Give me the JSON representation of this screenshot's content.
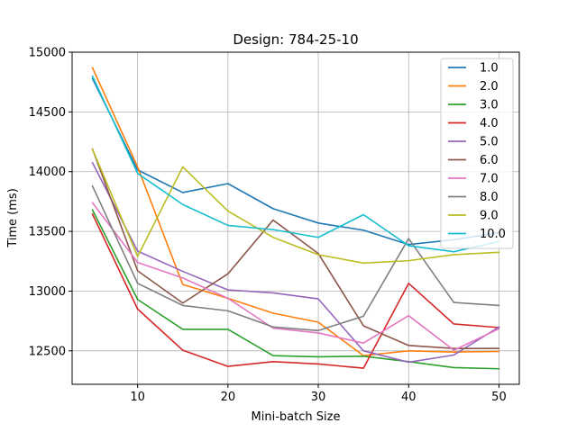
{
  "chart_data": {
    "type": "line",
    "title": "Design: 784-25-10",
    "xlabel": "Mini-batch Size",
    "ylabel": "Time (ms)",
    "x": [
      5,
      10,
      15,
      20,
      25,
      30,
      35,
      40,
      45,
      50
    ],
    "xlim": [
      2.75,
      52.25
    ],
    "ylim": [
      12220,
      15000
    ],
    "xticks": [
      10,
      20,
      30,
      40,
      50
    ],
    "yticks": [
      12500,
      13000,
      13500,
      14000,
      14500,
      15000
    ],
    "grid": true,
    "legend_position": "upper right",
    "series": [
      {
        "name": "1.0",
        "color": "#1f77b4",
        "values": [
          14780,
          14015,
          13825,
          13900,
          13690,
          13570,
          13510,
          13390,
          13430,
          13490
        ]
      },
      {
        "name": "2.0",
        "color": "#ff7f0e",
        "values": [
          14870,
          14040,
          13055,
          12940,
          12815,
          12740,
          12460,
          12500,
          12490,
          12495
        ]
      },
      {
        "name": "3.0",
        "color": "#2ca02c",
        "values": [
          13680,
          12930,
          12680,
          12680,
          12460,
          12450,
          12455,
          12410,
          12360,
          12350
        ]
      },
      {
        "name": "4.0",
        "color": "#d62728",
        "values": [
          13645,
          12850,
          12505,
          12370,
          12410,
          12390,
          12355,
          13065,
          12725,
          12695
        ]
      },
      {
        "name": "5.0",
        "color": "#9467bd",
        "values": [
          14075,
          13335,
          13165,
          13010,
          12985,
          12935,
          12500,
          12405,
          12465,
          12700
        ]
      },
      {
        "name": "6.0",
        "color": "#8c564b",
        "values": [
          14190,
          13170,
          12900,
          13145,
          13595,
          13315,
          12710,
          12545,
          12520,
          12520
        ]
      },
      {
        "name": "7.0",
        "color": "#e377c2",
        "values": [
          13740,
          13240,
          13110,
          12940,
          12690,
          12650,
          12565,
          12795,
          12505,
          12685
        ]
      },
      {
        "name": "8.0",
        "color": "#7f7f7f",
        "values": [
          13880,
          13065,
          12880,
          12835,
          12700,
          12670,
          12790,
          13440,
          12905,
          12880
        ]
      },
      {
        "name": "9.0",
        "color": "#bcbd22",
        "values": [
          14190,
          13290,
          14040,
          13670,
          13450,
          13305,
          13235,
          13255,
          13305,
          13325
        ]
      },
      {
        "name": "10.0",
        "color": "#17becf",
        "values": [
          14800,
          13985,
          13725,
          13550,
          13515,
          13450,
          13640,
          13380,
          13330,
          13415
        ]
      }
    ]
  }
}
